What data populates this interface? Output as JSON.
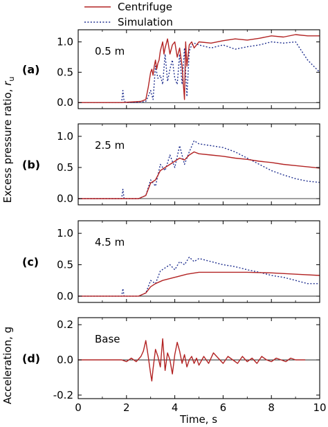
{
  "legend": {
    "centrifuge": "Centrifuge",
    "simulation": "Simulation"
  },
  "xaxis": {
    "label": "Time, s",
    "ticks": [
      "0",
      "2",
      "4",
      "6",
      "8",
      "10"
    ]
  },
  "ylabel_pressure": {
    "main": "Excess pressure ratio, ",
    "italic": "r",
    "sub": "u"
  },
  "ylabel_accel": "Acceleration, g",
  "colors": {
    "centrifuge": "#b22222",
    "simulation": "#1f2f8f"
  },
  "chart_data": [
    {
      "type": "line",
      "panel": "(a)",
      "annotation": "0.5 m",
      "xlim": [
        0,
        10
      ],
      "ylim": [
        -0.1,
        1.2
      ],
      "yticks": [
        "0.0",
        "0.5",
        "1.0"
      ],
      "ytick_values": [
        0,
        0.5,
        1.0
      ],
      "series": [
        {
          "name": "Centrifuge",
          "style": "solid",
          "x": [
            0,
            1.0,
            1.8,
            2.6,
            2.8,
            2.9,
            3.0,
            3.05,
            3.1,
            3.15,
            3.2,
            3.25,
            3.3,
            3.35,
            3.4,
            3.5,
            3.55,
            3.6,
            3.7,
            3.8,
            3.9,
            4.0,
            4.1,
            4.2,
            4.3,
            4.4,
            4.45,
            4.5,
            4.6,
            4.7,
            4.8,
            5.0,
            5.5,
            6.0,
            6.5,
            7.0,
            7.5,
            8.0,
            8.5,
            9.0,
            9.5,
            10.0
          ],
          "y": [
            0,
            0,
            0,
            0.02,
            0.05,
            0.25,
            0.5,
            0.55,
            0.45,
            0.6,
            0.7,
            0.55,
            0.65,
            0.7,
            0.85,
            1.0,
            0.8,
            0.9,
            1.05,
            0.8,
            0.95,
            1.0,
            0.75,
            0.9,
            0.6,
            0.05,
            1.0,
            0.6,
            0.95,
            1.0,
            0.9,
            1.0,
            0.98,
            1.02,
            1.05,
            1.03,
            1.06,
            1.1,
            1.08,
            1.12,
            1.1,
            1.1
          ]
        },
        {
          "name": "Simulation",
          "style": "dotted",
          "x": [
            0,
            1.0,
            1.8,
            1.85,
            1.9,
            2.0,
            2.5,
            2.8,
            2.9,
            3.0,
            3.1,
            3.2,
            3.3,
            3.4,
            3.5,
            3.6,
            3.7,
            3.8,
            3.9,
            4.0,
            4.1,
            4.2,
            4.3,
            4.4,
            4.5,
            4.6,
            4.7,
            4.8,
            5.0,
            5.5,
            6.0,
            6.5,
            7.0,
            7.5,
            8.0,
            8.5,
            9.0,
            9.5,
            10.0
          ],
          "y": [
            0,
            0,
            0,
            0.2,
            0.02,
            0,
            0,
            0.02,
            0.1,
            0.2,
            0.05,
            0.6,
            0.4,
            0.45,
            0.3,
            0.8,
            0.35,
            0.55,
            0.7,
            0.4,
            0.3,
            0.8,
            0.3,
            0.9,
            0.1,
            0.85,
            0.95,
            0.98,
            0.95,
            0.9,
            0.95,
            0.88,
            0.92,
            0.95,
            1.0,
            0.98,
            1.0,
            0.7,
            0.5
          ]
        }
      ]
    },
    {
      "type": "line",
      "panel": "(b)",
      "annotation": "2.5 m",
      "xlim": [
        0,
        10
      ],
      "ylim": [
        -0.1,
        1.2
      ],
      "yticks": [
        "0.0",
        "0.5",
        "1.0"
      ],
      "ytick_values": [
        0,
        0.5,
        1.0
      ],
      "series": [
        {
          "name": "Centrifuge",
          "style": "solid",
          "x": [
            0,
            1.0,
            2.5,
            2.8,
            3.0,
            3.2,
            3.4,
            3.6,
            3.8,
            4.0,
            4.2,
            4.4,
            4.6,
            4.8,
            5.0,
            5.5,
            6.0,
            6.5,
            7.0,
            7.5,
            8.0,
            8.5,
            9.0,
            9.5,
            10.0
          ],
          "y": [
            0,
            0,
            0,
            0.05,
            0.25,
            0.3,
            0.45,
            0.5,
            0.55,
            0.6,
            0.65,
            0.62,
            0.7,
            0.75,
            0.72,
            0.7,
            0.68,
            0.65,
            0.63,
            0.6,
            0.58,
            0.55,
            0.53,
            0.51,
            0.49
          ]
        },
        {
          "name": "Simulation",
          "style": "dotted",
          "x": [
            0,
            1.8,
            1.85,
            1.9,
            2.5,
            2.8,
            3.0,
            3.2,
            3.4,
            3.6,
            3.8,
            4.0,
            4.2,
            4.4,
            4.6,
            4.8,
            5.0,
            5.5,
            6.0,
            6.5,
            7.0,
            7.5,
            8.0,
            8.5,
            9.0,
            9.5,
            10.0
          ],
          "y": [
            0,
            0,
            0.15,
            0,
            0,
            0.05,
            0.3,
            0.2,
            0.55,
            0.45,
            0.7,
            0.5,
            0.85,
            0.55,
            0.75,
            0.93,
            0.88,
            0.85,
            0.82,
            0.75,
            0.65,
            0.55,
            0.45,
            0.38,
            0.32,
            0.28,
            0.26
          ]
        }
      ]
    },
    {
      "type": "line",
      "panel": "(c)",
      "annotation": "4.5 m",
      "xlim": [
        0,
        10
      ],
      "ylim": [
        -0.1,
        1.2
      ],
      "yticks": [
        "0.0",
        "0.5",
        "1.0"
      ],
      "ytick_values": [
        0,
        0.5,
        1.0
      ],
      "series": [
        {
          "name": "Centrifuge",
          "style": "solid",
          "x": [
            0,
            1.0,
            2.5,
            2.8,
            3.0,
            3.2,
            3.5,
            4.0,
            4.5,
            5.0,
            6.0,
            7.0,
            8.0,
            9.0,
            10.0
          ],
          "y": [
            0,
            0,
            0,
            0.05,
            0.15,
            0.2,
            0.25,
            0.3,
            0.35,
            0.38,
            0.38,
            0.38,
            0.37,
            0.35,
            0.33
          ]
        },
        {
          "name": "Simulation",
          "style": "dotted",
          "x": [
            0,
            1.8,
            1.85,
            1.9,
            2.5,
            2.8,
            3.0,
            3.2,
            3.4,
            3.6,
            3.8,
            4.0,
            4.2,
            4.4,
            4.6,
            4.8,
            5.0,
            5.5,
            6.0,
            6.5,
            7.0,
            7.5,
            8.0,
            8.5,
            9.0,
            9.5,
            10.0
          ],
          "y": [
            0,
            0,
            0.12,
            0,
            0,
            0.05,
            0.25,
            0.2,
            0.4,
            0.45,
            0.5,
            0.42,
            0.55,
            0.5,
            0.62,
            0.55,
            0.6,
            0.55,
            0.5,
            0.47,
            0.42,
            0.38,
            0.33,
            0.3,
            0.25,
            0.2,
            0.2
          ]
        }
      ]
    },
    {
      "type": "line",
      "panel": "(d)",
      "annotation": "Base",
      "xlim": [
        0,
        10
      ],
      "ylim": [
        -0.22,
        0.24
      ],
      "yticks": [
        "0.2",
        "0.0",
        "-0.2"
      ],
      "ytick_values": [
        0.2,
        0,
        -0.2
      ],
      "series": [
        {
          "name": "Centrifuge",
          "style": "solid",
          "x": [
            0,
            1.8,
            2.0,
            2.2,
            2.4,
            2.6,
            2.7,
            2.8,
            2.9,
            3.0,
            3.05,
            3.1,
            3.2,
            3.3,
            3.4,
            3.5,
            3.6,
            3.7,
            3.8,
            3.9,
            4.0,
            4.1,
            4.2,
            4.3,
            4.4,
            4.5,
            4.6,
            4.7,
            4.8,
            4.9,
            5.0,
            5.2,
            5.4,
            5.6,
            5.8,
            6.0,
            6.2,
            6.4,
            6.6,
            6.8,
            7.0,
            7.2,
            7.4,
            7.6,
            7.8,
            8.0,
            8.2,
            8.4,
            8.6,
            8.8,
            9.0,
            9.2,
            9.4
          ],
          "y": [
            0,
            0,
            -0.01,
            0.01,
            -0.01,
            0.02,
            0.05,
            0.11,
            0.02,
            -0.08,
            -0.12,
            -0.05,
            0.06,
            0.02,
            -0.04,
            0.12,
            -0.06,
            0.04,
            0.0,
            -0.08,
            0.03,
            0.1,
            0.05,
            -0.02,
            0.03,
            -0.04,
            0.0,
            0.02,
            -0.02,
            0.01,
            -0.03,
            0.02,
            -0.02,
            0.04,
            0.01,
            -0.02,
            0.02,
            0.0,
            -0.02,
            0.02,
            -0.01,
            0.01,
            -0.02,
            0.02,
            0.0,
            -0.01,
            0.01,
            0.0,
            -0.01,
            0.01,
            0.0,
            0.0,
            0.0
          ]
        }
      ]
    }
  ]
}
